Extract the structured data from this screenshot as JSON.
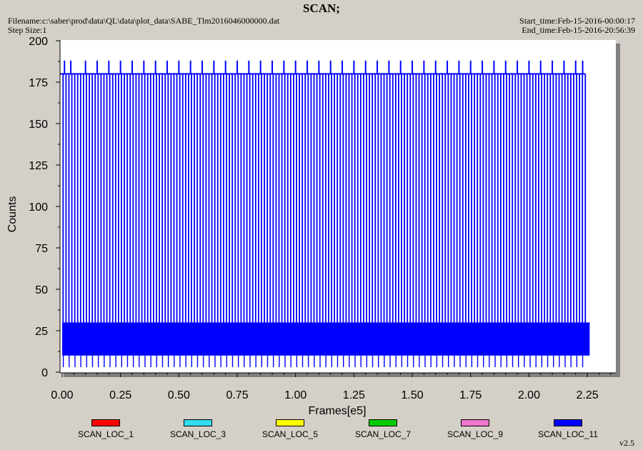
{
  "header": {
    "title": "SCAN;",
    "filename": "Filename:c:\\saber\\prod\\data\\QL\\data\\plot_data\\SABE_Tlm2016046000000.dat",
    "step_size": "Step Size:1",
    "start_time": "Start_time:Feb-15-2016-00:00:17",
    "end_time": "End_time:Feb-15-2016-20:56:39"
  },
  "version": "v2.5",
  "colors": {
    "window_bg": "#d4d0c8",
    "plot_bg": "#ffffff",
    "shadow": "#808080",
    "dominant_series": "#0000ff"
  },
  "chart_data": {
    "type": "line",
    "title": "SCAN;",
    "xlabel": "Frames[e5]",
    "ylabel": "Counts",
    "xlim": [
      0,
      2.375
    ],
    "ylim": [
      0,
      200
    ],
    "xticks": [
      "0.00",
      "0.25",
      "0.50",
      "0.75",
      "1.00",
      "1.25",
      "1.50",
      "1.75",
      "2.00",
      "2.25"
    ],
    "yticks": [
      "0",
      "25",
      "50",
      "75",
      "100",
      "125",
      "150",
      "175",
      "200"
    ],
    "grid": false,
    "legend_position": "bottom",
    "series": [
      {
        "name": "SCAN_LOC_1",
        "color": "#ff0000"
      },
      {
        "name": "SCAN_LOC_3",
        "color": "#33ddee"
      },
      {
        "name": "SCAN_LOC_5",
        "color": "#ffff00"
      },
      {
        "name": "SCAN_LOC_7",
        "color": "#00cc00"
      },
      {
        "name": "SCAN_LOC_9",
        "color": "#ee77cc"
      },
      {
        "name": "SCAN_LOC_11",
        "color": "#0000ff",
        "baseband_min": 10,
        "baseband_max": 30,
        "spike_low": 180,
        "spike_high": 188,
        "x_start": 0.0,
        "x_end": 2.25,
        "x_tail_end": 2.26,
        "spike_x": [
          0.01,
          0.037,
          0.1,
          0.15,
          0.2,
          0.25,
          0.3,
          0.35,
          0.4,
          0.45,
          0.5,
          0.55,
          0.6,
          0.65,
          0.7,
          0.75,
          0.8,
          0.85,
          0.9,
          0.95,
          1.0,
          1.05,
          1.1,
          1.15,
          1.2,
          1.25,
          1.3,
          1.35,
          1.4,
          1.45,
          1.5,
          1.55,
          1.6,
          1.65,
          1.7,
          1.75,
          1.8,
          1.85,
          1.9,
          1.95,
          2.0,
          2.05,
          2.1,
          2.15,
          2.2,
          2.23
        ]
      }
    ]
  }
}
